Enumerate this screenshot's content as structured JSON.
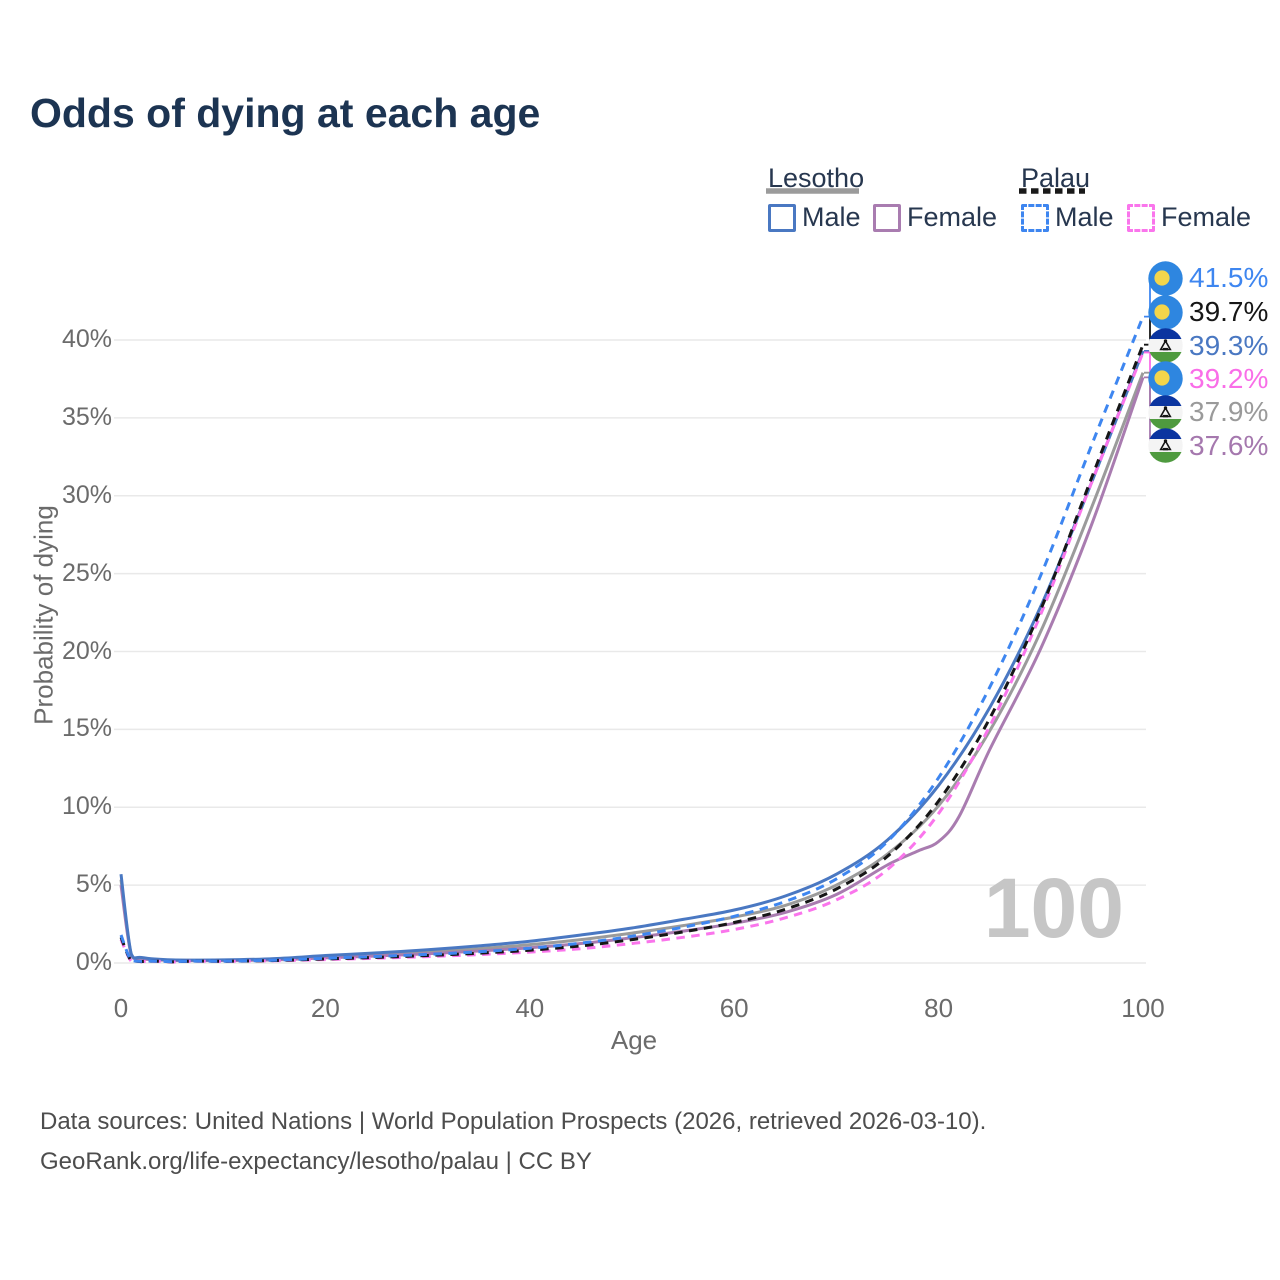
{
  "title": "Odds of dying at each age",
  "legend": {
    "groups": [
      {
        "name": "Lesotho",
        "line_style": "solid",
        "underline_color": "#9b9b9b",
        "items": [
          {
            "label": "Male",
            "color": "#4a78c2"
          },
          {
            "label": "Female",
            "color": "#a97cb0"
          }
        ]
      },
      {
        "name": "Palau",
        "line_style": "dashed",
        "underline_color": "#1a1a1a",
        "items": [
          {
            "label": "Male",
            "color": "#3e86f0"
          },
          {
            "label": "Female",
            "color": "#fa75ec"
          }
        ]
      }
    ]
  },
  "axes": {
    "y_title": "Probability of dying",
    "y_ticks": [
      "40%",
      "35%",
      "30%",
      "25%",
      "20%",
      "15%",
      "10%",
      "5%",
      "0%"
    ],
    "y_tick_values": [
      40,
      35,
      30,
      25,
      20,
      15,
      10,
      5,
      0
    ],
    "x_title": "Age",
    "x_ticks": [
      "0",
      "20",
      "40",
      "60",
      "80",
      "100"
    ],
    "x_tick_values": [
      0,
      20,
      40,
      60,
      80,
      100
    ],
    "xlim": [
      0,
      100
    ],
    "ylim": [
      0,
      43
    ]
  },
  "watermark_age_counter": "100",
  "end_labels": [
    {
      "value_label": "41.5%",
      "value": 41.5,
      "color": "#3e86f0",
      "flag": "palau",
      "series": "Palau Male"
    },
    {
      "value_label": "39.7%",
      "value": 39.7,
      "color": "#161616",
      "flag": "palau",
      "series": "Palau Both sexes"
    },
    {
      "value_label": "39.3%",
      "value": 39.3,
      "color": "#4a78c2",
      "flag": "lesotho",
      "series": "Lesotho Male"
    },
    {
      "value_label": "39.2%",
      "value": 39.2,
      "color": "#f96ee8",
      "flag": "palau",
      "series": "Palau Female"
    },
    {
      "value_label": "37.9%",
      "value": 37.9,
      "color": "#9a9a9a",
      "flag": "lesotho",
      "series": "Lesotho Both sexes"
    },
    {
      "value_label": "37.6%",
      "value": 37.6,
      "color": "#a578ae",
      "flag": "lesotho",
      "series": "Lesotho Female"
    }
  ],
  "footer": {
    "line1": "Data sources: United Nations | World Population Prospects (2026, retrieved 2026-03-10).",
    "line2": "GeoRank.org/life-expectancy/lesotho/palau | CC BY"
  },
  "flag_colors": {
    "palau": {
      "field": "#2e86e0",
      "moon": "#f3d54b"
    },
    "lesotho": {
      "blue": "#0b35a0",
      "white": "#f4f4f4",
      "green": "#4f9a3f",
      "hat": "#141414"
    }
  },
  "chart_data": {
    "type": "line",
    "title": "Odds of dying at each age",
    "xlabel": "Age",
    "ylabel": "Probability of dying",
    "x_unit": "years",
    "y_unit": "percent",
    "grid": "horizontal",
    "legend_position": "top-right",
    "series": [
      {
        "name": "Lesotho Male",
        "country": "Lesotho",
        "sex": "male",
        "color": "#4a78c2",
        "style": "solid",
        "points": [
          [
            0,
            5.7
          ],
          [
            1,
            0.6
          ],
          [
            2,
            0.35
          ],
          [
            5,
            0.2
          ],
          [
            10,
            0.2
          ],
          [
            15,
            0.28
          ],
          [
            20,
            0.48
          ],
          [
            25,
            0.65
          ],
          [
            30,
            0.85
          ],
          [
            35,
            1.1
          ],
          [
            40,
            1.4
          ],
          [
            45,
            1.8
          ],
          [
            50,
            2.25
          ],
          [
            55,
            2.8
          ],
          [
            60,
            3.4
          ],
          [
            65,
            4.3
          ],
          [
            70,
            5.7
          ],
          [
            75,
            7.9
          ],
          [
            80,
            11.4
          ],
          [
            85,
            16.4
          ],
          [
            90,
            22.9
          ],
          [
            95,
            30.9
          ],
          [
            100,
            39.3
          ]
        ]
      },
      {
        "name": "Lesotho Both sexes",
        "country": "Lesotho",
        "sex": "both",
        "color": "#9b9b9b",
        "style": "solid",
        "points": [
          [
            0,
            5.35
          ],
          [
            1,
            0.55
          ],
          [
            2,
            0.3
          ],
          [
            5,
            0.18
          ],
          [
            10,
            0.18
          ],
          [
            15,
            0.24
          ],
          [
            20,
            0.4
          ],
          [
            25,
            0.55
          ],
          [
            30,
            0.72
          ],
          [
            35,
            0.92
          ],
          [
            40,
            1.18
          ],
          [
            45,
            1.5
          ],
          [
            50,
            1.92
          ],
          [
            55,
            2.4
          ],
          [
            60,
            2.95
          ],
          [
            65,
            3.7
          ],
          [
            70,
            5.0
          ],
          [
            75,
            7.0
          ],
          [
            80,
            10.1
          ],
          [
            85,
            14.9
          ],
          [
            90,
            21.3
          ],
          [
            95,
            29.3
          ],
          [
            100,
            37.9
          ]
        ]
      },
      {
        "name": "Lesotho Female",
        "country": "Lesotho",
        "sex": "female",
        "color": "#a97cb0",
        "style": "solid",
        "points": [
          [
            0,
            5.0
          ],
          [
            1,
            0.5
          ],
          [
            2,
            0.27
          ],
          [
            5,
            0.16
          ],
          [
            10,
            0.16
          ],
          [
            15,
            0.2
          ],
          [
            20,
            0.33
          ],
          [
            25,
            0.45
          ],
          [
            30,
            0.6
          ],
          [
            35,
            0.77
          ],
          [
            40,
            0.98
          ],
          [
            45,
            1.25
          ],
          [
            50,
            1.62
          ],
          [
            55,
            2.05
          ],
          [
            60,
            2.55
          ],
          [
            65,
            3.25
          ],
          [
            70,
            4.4
          ],
          [
            75,
            6.3
          ],
          [
            78,
            7.2
          ],
          [
            80,
            7.8
          ],
          [
            82,
            9.4
          ],
          [
            85,
            13.7
          ],
          [
            90,
            20.2
          ],
          [
            95,
            28.2
          ],
          [
            100,
            37.6
          ]
        ]
      },
      {
        "name": "Palau Male",
        "country": "Palau",
        "sex": "male",
        "color": "#3e86f0",
        "style": "dashed",
        "points": [
          [
            0,
            1.8
          ],
          [
            1,
            0.16
          ],
          [
            2,
            0.1
          ],
          [
            5,
            0.08
          ],
          [
            10,
            0.11
          ],
          [
            15,
            0.18
          ],
          [
            20,
            0.3
          ],
          [
            25,
            0.42
          ],
          [
            30,
            0.55
          ],
          [
            35,
            0.72
          ],
          [
            40,
            0.95
          ],
          [
            45,
            1.28
          ],
          [
            50,
            1.72
          ],
          [
            55,
            2.3
          ],
          [
            60,
            3.0
          ],
          [
            65,
            3.95
          ],
          [
            70,
            5.4
          ],
          [
            75,
            7.8
          ],
          [
            80,
            11.9
          ],
          [
            85,
            17.7
          ],
          [
            90,
            24.9
          ],
          [
            95,
            33.3
          ],
          [
            100,
            41.5
          ]
        ]
      },
      {
        "name": "Palau Both sexes",
        "country": "Palau",
        "sex": "both",
        "color": "#161616",
        "style": "dashed",
        "points": [
          [
            0,
            1.65
          ],
          [
            1,
            0.14
          ],
          [
            2,
            0.09
          ],
          [
            5,
            0.07
          ],
          [
            10,
            0.1
          ],
          [
            15,
            0.16
          ],
          [
            20,
            0.26
          ],
          [
            25,
            0.36
          ],
          [
            30,
            0.48
          ],
          [
            35,
            0.63
          ],
          [
            40,
            0.82
          ],
          [
            45,
            1.1
          ],
          [
            50,
            1.5
          ],
          [
            55,
            2.0
          ],
          [
            60,
            2.6
          ],
          [
            65,
            3.45
          ],
          [
            70,
            4.75
          ],
          [
            75,
            6.85
          ],
          [
            80,
            10.4
          ],
          [
            85,
            15.7
          ],
          [
            90,
            22.7
          ],
          [
            95,
            31.2
          ],
          [
            100,
            39.7
          ]
        ]
      },
      {
        "name": "Palau Female",
        "country": "Palau",
        "sex": "female",
        "color": "#fa75ec",
        "style": "dashed",
        "points": [
          [
            0,
            1.5
          ],
          [
            1,
            0.12
          ],
          [
            2,
            0.08
          ],
          [
            5,
            0.06
          ],
          [
            10,
            0.09
          ],
          [
            15,
            0.14
          ],
          [
            20,
            0.22
          ],
          [
            25,
            0.31
          ],
          [
            30,
            0.41
          ],
          [
            35,
            0.54
          ],
          [
            40,
            0.7
          ],
          [
            45,
            0.92
          ],
          [
            50,
            1.25
          ],
          [
            55,
            1.65
          ],
          [
            60,
            2.15
          ],
          [
            65,
            2.9
          ],
          [
            70,
            4.05
          ],
          [
            75,
            6.0
          ],
          [
            80,
            9.6
          ],
          [
            85,
            15.2
          ],
          [
            90,
            22.4
          ],
          [
            95,
            30.9
          ],
          [
            100,
            39.2
          ]
        ]
      }
    ],
    "end_values": {
      "Palau Male": 41.5,
      "Palau Both sexes": 39.7,
      "Lesotho Male": 39.3,
      "Palau Female": 39.2,
      "Lesotho Both sexes": 37.9,
      "Lesotho Female": 37.6
    }
  }
}
